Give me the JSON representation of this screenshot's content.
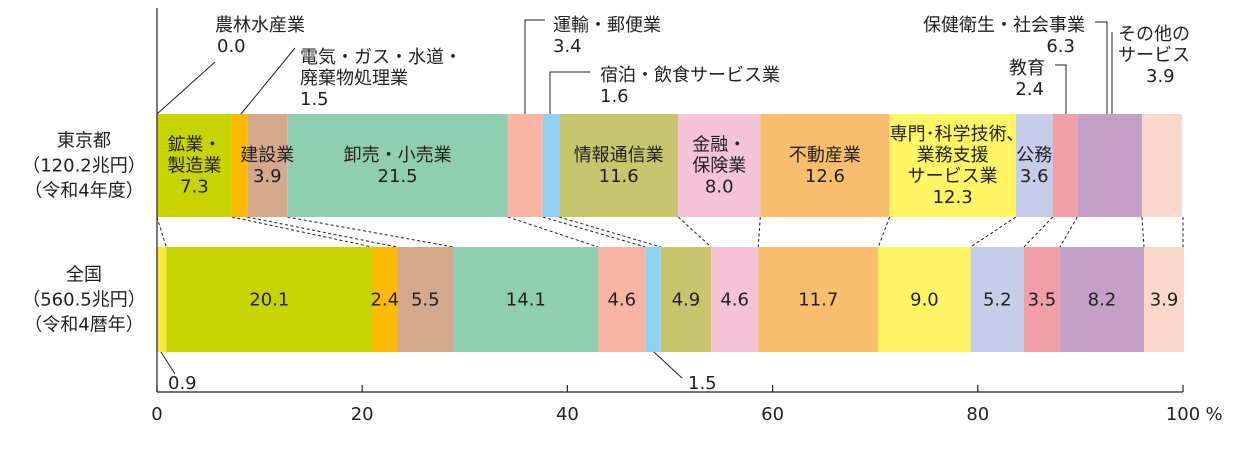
{
  "chart_data": {
    "type": "bar",
    "orientation": "horizontal",
    "stacked": "percent",
    "xlim": [
      0,
      100
    ],
    "x_unit": "%",
    "x_ticks": [
      0,
      20,
      40,
      60,
      80,
      100
    ],
    "x_tick_labels": [
      "0",
      "20",
      "40",
      "60",
      "80",
      "100"
    ],
    "bars": [
      {
        "label_lines": [
          "東京都",
          "（120.2兆円）",
          "（令和4年度）"
        ]
      },
      {
        "label_lines": [
          "全国",
          "（560.5兆円）",
          "（令和4暦年）"
        ]
      }
    ],
    "series": [
      {
        "name": "農林水産業",
        "color": "#f5eb3c",
        "values": [
          0.0,
          0.9
        ]
      },
      {
        "name": "鉱業・製造業",
        "color": "#c8d400",
        "values": [
          7.3,
          20.1
        ]
      },
      {
        "name": "電気・ガス・水道・廃棄物処理業",
        "color": "#fbb900",
        "values": [
          1.5,
          2.4
        ]
      },
      {
        "name": "建設業",
        "color": "#d4a88c",
        "values": [
          3.9,
          5.5
        ]
      },
      {
        "name": "卸売・小売業",
        "color": "#8fceb0",
        "values": [
          21.5,
          14.1
        ]
      },
      {
        "name": "運輸・郵便業",
        "color": "#f8b5a4",
        "values": [
          3.4,
          4.6
        ]
      },
      {
        "name": "宿泊・飲食サービス業",
        "color": "#8ed1f2",
        "values": [
          1.6,
          1.5
        ]
      },
      {
        "name": "情報通信業",
        "color": "#c7c56e",
        "values": [
          11.6,
          4.9
        ]
      },
      {
        "name": "金融・保険業",
        "color": "#f5c3d8",
        "values": [
          8.0,
          4.6
        ]
      },
      {
        "name": "不動産業",
        "color": "#f8be6e",
        "values": [
          12.6,
          11.7
        ]
      },
      {
        "name": "専門・科学技術、業務支援サービス業",
        "color": "#fff565",
        "values": [
          12.3,
          9.0
        ]
      },
      {
        "name": "公務",
        "color": "#c6cde8",
        "values": [
          3.6,
          5.2
        ]
      },
      {
        "name": "教育",
        "color": "#f09ea7",
        "values": [
          2.4,
          3.5
        ]
      },
      {
        "name": "保健衛生・社会事業",
        "color": "#c4a0c9",
        "values": [
          6.3,
          8.2
        ]
      },
      {
        "name": "その他のサービス",
        "color": "#fbd8cc",
        "values": [
          3.9,
          3.9
        ]
      }
    ],
    "inner_labels": [
      {
        "bar": 0,
        "series": 1,
        "lines": [
          "鉱業・",
          "製造業",
          "7.3"
        ]
      },
      {
        "bar": 0,
        "series": 3,
        "lines": [
          "建設業",
          "3.9"
        ]
      },
      {
        "bar": 0,
        "series": 4,
        "lines": [
          "卸売・小売業",
          "21.5"
        ]
      },
      {
        "bar": 0,
        "series": 7,
        "lines": [
          "情報通信業",
          "11.6"
        ]
      },
      {
        "bar": 0,
        "series": 8,
        "lines": [
          "金融・",
          "保険業",
          "8.0"
        ]
      },
      {
        "bar": 0,
        "series": 9,
        "lines": [
          "不動産業",
          "12.6"
        ]
      },
      {
        "bar": 0,
        "series": 10,
        "lines": [
          "専門･科学技術､",
          "業務支援",
          "サービス業",
          "12.3"
        ]
      },
      {
        "bar": 0,
        "series": 11,
        "lines": [
          "公務",
          "3.6"
        ]
      },
      {
        "bar": 1,
        "series": 1,
        "lines": [
          "20.1"
        ]
      },
      {
        "bar": 1,
        "series": 2,
        "lines": [
          "2.4"
        ]
      },
      {
        "bar": 1,
        "series": 3,
        "lines": [
          "5.5"
        ]
      },
      {
        "bar": 1,
        "series": 4,
        "lines": [
          "14.1"
        ]
      },
      {
        "bar": 1,
        "series": 5,
        "lines": [
          "4.6"
        ]
      },
      {
        "bar": 1,
        "series": 7,
        "lines": [
          "4.9"
        ]
      },
      {
        "bar": 1,
        "series": 8,
        "lines": [
          "4.6"
        ]
      },
      {
        "bar": 1,
        "series": 9,
        "lines": [
          "11.7"
        ]
      },
      {
        "bar": 1,
        "series": 10,
        "lines": [
          "9.0"
        ]
      },
      {
        "bar": 1,
        "series": 11,
        "lines": [
          "5.2"
        ]
      },
      {
        "bar": 1,
        "series": 12,
        "lines": [
          "3.5"
        ]
      },
      {
        "bar": 1,
        "series": 13,
        "lines": [
          "8.2"
        ]
      },
      {
        "bar": 1,
        "series": 14,
        "lines": [
          "3.9"
        ]
      }
    ],
    "callouts": [
      {
        "bar": 0,
        "series": 0,
        "lines": [
          "農林水産業",
          "0.0"
        ]
      },
      {
        "bar": 0,
        "series": 2,
        "lines": [
          "電気・ガス・水道・",
          "廃棄物処理業",
          "1.5"
        ]
      },
      {
        "bar": 0,
        "series": 5,
        "lines": [
          "運輸・郵便業",
          "3.4"
        ]
      },
      {
        "bar": 0,
        "series": 6,
        "lines": [
          "宿泊・飲食サービス業",
          "1.6"
        ]
      },
      {
        "bar": 0,
        "series": 12,
        "lines": [
          "教育",
          "2.4"
        ]
      },
      {
        "bar": 0,
        "series": 13,
        "lines": [
          "保健衛生・社会事業",
          "6.3"
        ]
      },
      {
        "bar": 0,
        "series": 14,
        "lines": [
          "その他の",
          "サービス",
          "3.9"
        ]
      },
      {
        "bar": 1,
        "series": 0,
        "lines": [
          "0.9"
        ]
      },
      {
        "bar": 1,
        "series": 6,
        "lines": [
          "1.5"
        ]
      }
    ]
  }
}
